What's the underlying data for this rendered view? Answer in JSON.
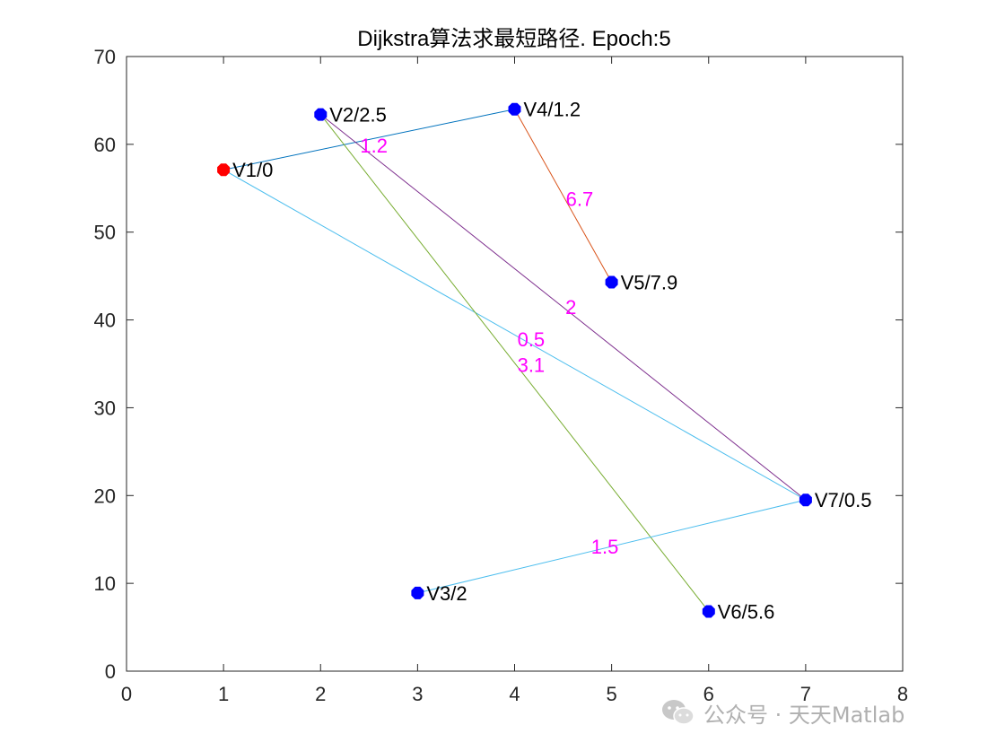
{
  "chart_data": {
    "type": "graph",
    "title": "Dijkstra算法求最短路径. Epoch:5",
    "xlim": [
      0,
      8
    ],
    "ylim": [
      0,
      70
    ],
    "xticks": [
      0,
      1,
      2,
      3,
      4,
      5,
      6,
      7,
      8
    ],
    "yticks": [
      0,
      10,
      20,
      30,
      40,
      50,
      60,
      70
    ],
    "nodes": [
      {
        "label": "V1/0",
        "x": 1,
        "y": 57.1,
        "color": "#ff0000"
      },
      {
        "label": "V2/2.5",
        "x": 2,
        "y": 63.4,
        "color": "#0000ff"
      },
      {
        "label": "V3/2",
        "x": 3,
        "y": 8.9,
        "color": "#0000ff"
      },
      {
        "label": "V4/1.2",
        "x": 4,
        "y": 64,
        "color": "#0000ff"
      },
      {
        "label": "V5/7.9",
        "x": 5,
        "y": 44.3,
        "color": "#0000ff"
      },
      {
        "label": "V6/5.6",
        "x": 6,
        "y": 6.8,
        "color": "#0000ff"
      },
      {
        "label": "V7/0.5",
        "x": 7,
        "y": 19.5,
        "color": "#0000ff"
      }
    ],
    "edges": [
      {
        "from": 0,
        "to": 3,
        "weight": "1.2",
        "color": "#0072bd",
        "label_x": 2.55,
        "label_y": 59.9
      },
      {
        "from": 3,
        "to": 4,
        "weight": "6.7",
        "color": "#d95319",
        "label_x": 4.67,
        "label_y": 53.8
      },
      {
        "from": 1,
        "to": 6,
        "weight": "2",
        "color": "#7e2f8e",
        "label_x": 4.58,
        "label_y": 41.5
      },
      {
        "from": 0,
        "to": 6,
        "weight": "0.5",
        "color": "#4dbeee",
        "label_x": 4.17,
        "label_y": 37.8
      },
      {
        "from": 1,
        "to": 5,
        "weight": "3.1",
        "color": "#77ac30",
        "label_x": 4.17,
        "label_y": 34.9
      },
      {
        "from": 2,
        "to": 6,
        "weight": "1.5",
        "color": "#4dbeee",
        "label_x": 4.93,
        "label_y": 14.2
      }
    ],
    "edge_label_color": "#ff00ff"
  },
  "watermark": {
    "text": "公众号 · 天天Matlab",
    "icon": "wechat-icon"
  }
}
